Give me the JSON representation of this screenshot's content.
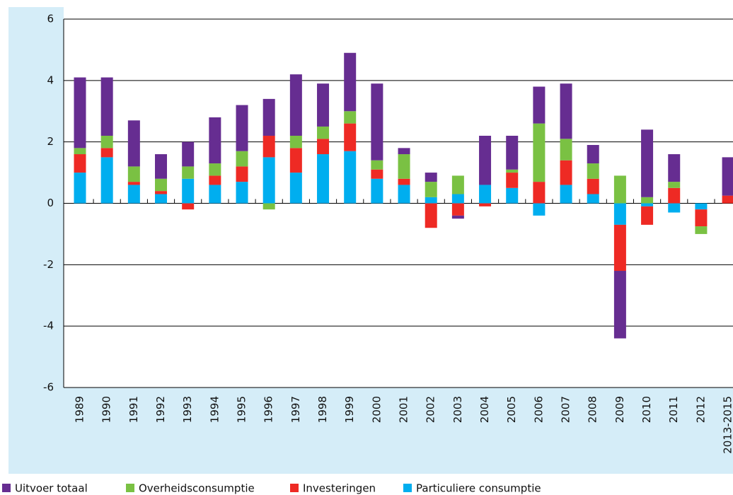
{
  "chart_data": {
    "type": "stacked-bar",
    "categories": [
      "1989",
      "1990",
      "1991",
      "1992",
      "1993",
      "1994",
      "1995",
      "1996",
      "1997",
      "1998",
      "1999",
      "2000",
      "2001",
      "2002",
      "2003",
      "2004",
      "2005",
      "2006",
      "2007",
      "2008",
      "2009",
      "2010",
      "2011",
      "2012",
      "2013-2015"
    ],
    "series": [
      {
        "name": "Uitvoer totaal",
        "color": "#662d91",
        "values": [
          2.3,
          1.9,
          1.5,
          0.8,
          0.8,
          1.5,
          1.5,
          1.2,
          2.0,
          1.4,
          1.9,
          2.5,
          0.2,
          0.3,
          -0.1,
          1.6,
          1.1,
          1.2,
          1.8,
          0.6,
          -2.2,
          2.2,
          0.9,
          0,
          1.25
        ]
      },
      {
        "name": "Overheidsconsumptie",
        "color": "#7ac143",
        "values": [
          0.2,
          0.4,
          0.5,
          0.4,
          0.4,
          0.4,
          0.5,
          -0.2,
          0.4,
          0.4,
          0.4,
          0.3,
          0.8,
          0.5,
          0.6,
          0,
          0.1,
          1.9,
          0.7,
          0.5,
          0.9,
          0.2,
          0.2,
          -0.25,
          0
        ]
      },
      {
        "name": "Investeringen",
        "color": "#ee2a24",
        "values": [
          0.6,
          0.3,
          0.1,
          0.1,
          -0.2,
          0.3,
          0.5,
          0.7,
          0.8,
          0.5,
          0.9,
          0.3,
          0.2,
          -0.8,
          -0.4,
          -0.1,
          0.5,
          0.7,
          0.8,
          0.5,
          -1.5,
          -0.6,
          0.5,
          -0.55,
          0.25
        ]
      },
      {
        "name": "Particuliere consumptie",
        "color": "#00aeef",
        "values": [
          1.0,
          1.5,
          0.6,
          0.3,
          0.8,
          0.6,
          0.7,
          1.5,
          1.0,
          1.6,
          1.7,
          0.8,
          0.6,
          0.2,
          0.3,
          0.6,
          0.5,
          -0.4,
          0.6,
          0.3,
          -0.7,
          -0.1,
          -0.3,
          -0.2,
          0
        ]
      }
    ],
    "ylim": [
      -6,
      6
    ],
    "yticks": [
      -6,
      -4,
      -2,
      0,
      2,
      4,
      6
    ],
    "grid": true
  }
}
